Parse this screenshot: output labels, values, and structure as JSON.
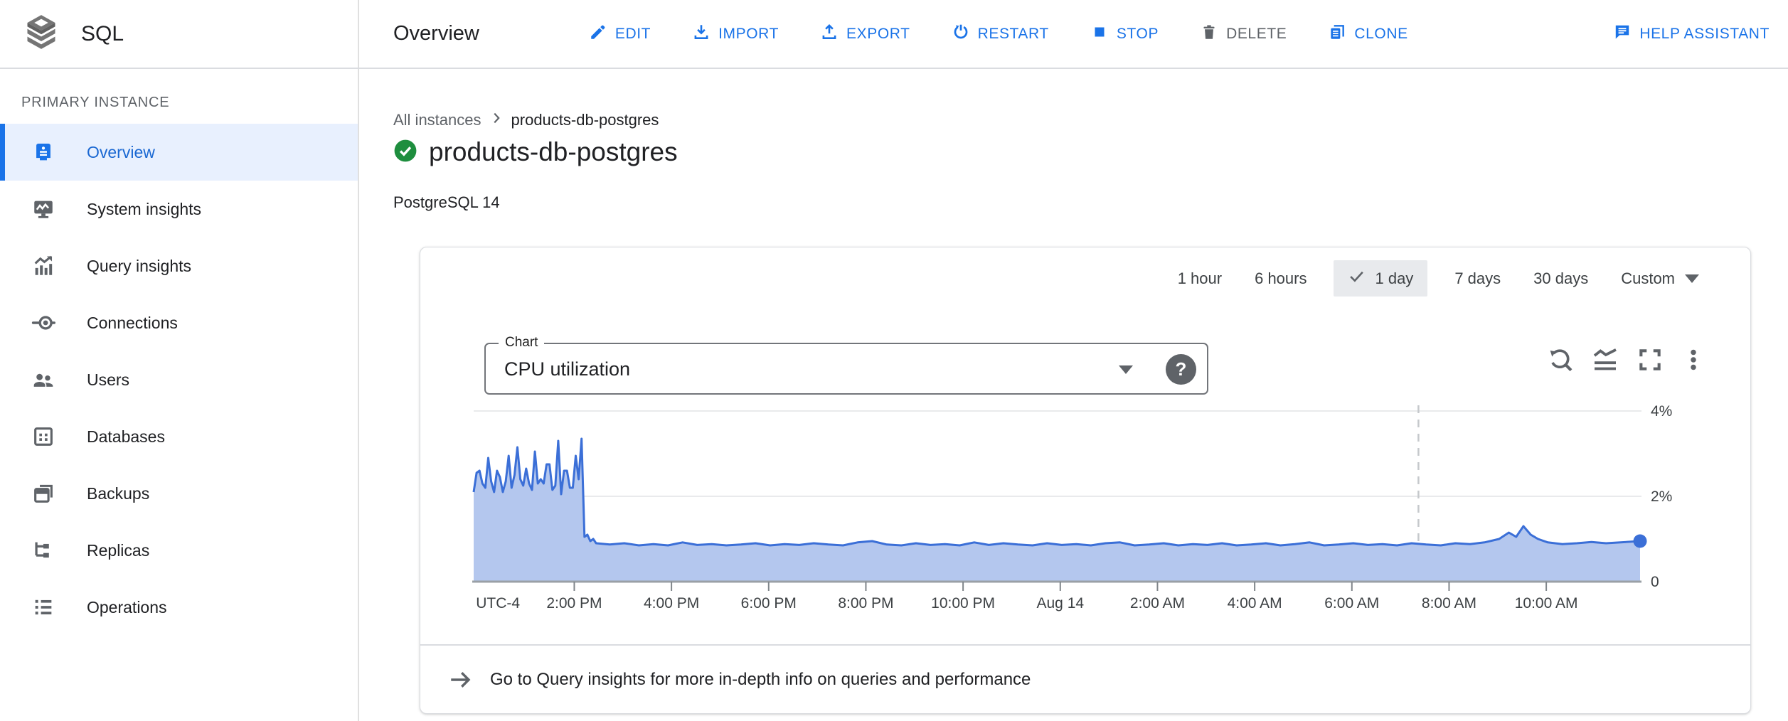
{
  "app": {
    "product_name": "SQL",
    "page_title": "Overview"
  },
  "toolbar": {
    "actions": [
      {
        "label": "EDIT",
        "icon": "edit-icon"
      },
      {
        "label": "IMPORT",
        "icon": "import-icon"
      },
      {
        "label": "EXPORT",
        "icon": "export-icon"
      },
      {
        "label": "RESTART",
        "icon": "restart-icon"
      },
      {
        "label": "STOP",
        "icon": "stop-icon"
      },
      {
        "label": "DELETE",
        "icon": "delete-icon"
      },
      {
        "label": "CLONE",
        "icon": "clone-icon"
      },
      {
        "label": "HELP ASSISTANT",
        "icon": "help-assistant-icon"
      }
    ]
  },
  "sidebar": {
    "section_label": "PRIMARY INSTANCE",
    "items": [
      {
        "label": "Overview",
        "icon": "overview-icon",
        "selected": true
      },
      {
        "label": "System insights",
        "icon": "system-insights-icon",
        "selected": false
      },
      {
        "label": "Query insights",
        "icon": "query-insights-icon",
        "selected": false
      },
      {
        "label": "Connections",
        "icon": "connections-icon",
        "selected": false
      },
      {
        "label": "Users",
        "icon": "users-icon",
        "selected": false
      },
      {
        "label": "Databases",
        "icon": "databases-icon",
        "selected": false
      },
      {
        "label": "Backups",
        "icon": "backups-icon",
        "selected": false
      },
      {
        "label": "Replicas",
        "icon": "replicas-icon",
        "selected": false
      },
      {
        "label": "Operations",
        "icon": "operations-icon",
        "selected": false
      }
    ]
  },
  "breadcrumb": {
    "parent": "All instances",
    "current": "products-db-postgres"
  },
  "instance": {
    "name": "products-db-postgres",
    "status": "healthy",
    "version": "PostgreSQL 14"
  },
  "time_range": {
    "options": [
      "1 hour",
      "6 hours",
      "1 day",
      "7 days",
      "30 days",
      "Custom"
    ],
    "selected": "1 day"
  },
  "chart_controls": {
    "label": "Chart",
    "selected_metric": "CPU utilization",
    "help": "?"
  },
  "footer_link": {
    "text": "Go to Query insights for more in-depth info on queries and performance"
  },
  "colors": {
    "accent_blue": "#1a73e8",
    "selected_text_blue": "#1967d2",
    "selected_bg": "#e8f0fe",
    "chart_line": "#3b6fd7",
    "chart_fill": "#b4c7ee",
    "grid_gray": "#e9eaec",
    "axis_gray": "#9aa0a6",
    "tick_gray": "#80868b",
    "label_gray": "#3c4043",
    "cursor_dash_gray": "#c6c9cc",
    "status_green": "#1e8e3e",
    "chip_bg": "#e8eaed"
  },
  "chart_data": {
    "type": "area",
    "title": "CPU utilization",
    "unit": "%",
    "x_unit": "hours since chart start (approx 11:56 AM, UTC-4)",
    "t_domain": [
      0,
      24
    ],
    "ylim": [
      0,
      4
    ],
    "grid": "horizontal",
    "legend_position": "none",
    "y_ticks": [
      {
        "v": 4,
        "label": "4%",
        "gridline": true
      },
      {
        "v": 2,
        "label": "2%",
        "gridline": true
      },
      {
        "v": 0,
        "label": "0",
        "gridline": false
      }
    ],
    "x_ticks": [
      {
        "t": 2.07,
        "label": "2:00 PM"
      },
      {
        "t": 4.07,
        "label": "4:00 PM"
      },
      {
        "t": 6.07,
        "label": "6:00 PM"
      },
      {
        "t": 8.07,
        "label": "8:00 PM"
      },
      {
        "t": 10.07,
        "label": "10:00 PM"
      },
      {
        "t": 12.07,
        "label": "Aug 14"
      },
      {
        "t": 14.07,
        "label": "2:00 AM"
      },
      {
        "t": 16.07,
        "label": "4:00 AM"
      },
      {
        "t": 18.07,
        "label": "6:00 AM"
      },
      {
        "t": 20.07,
        "label": "8:00 AM"
      },
      {
        "t": 22.07,
        "label": "10:00 AM"
      }
    ],
    "timezone_label": {
      "t": 0.5,
      "label": "UTC-4"
    },
    "cursor_t": 19.44,
    "end_dot": {
      "t": 24,
      "v": 0.95
    },
    "points": [
      [
        0,
        2.1
      ],
      [
        0.06,
        2.55
      ],
      [
        0.12,
        2.6
      ],
      [
        0.18,
        2.3
      ],
      [
        0.24,
        2.2
      ],
      [
        0.3,
        2.9
      ],
      [
        0.36,
        2.35
      ],
      [
        0.42,
        2.1
      ],
      [
        0.48,
        2.6
      ],
      [
        0.54,
        2.45
      ],
      [
        0.6,
        2.1
      ],
      [
        0.66,
        2.35
      ],
      [
        0.72,
        2.95
      ],
      [
        0.78,
        2.2
      ],
      [
        0.84,
        2.5
      ],
      [
        0.9,
        3.15
      ],
      [
        0.96,
        2.4
      ],
      [
        1.02,
        2.25
      ],
      [
        1.08,
        2.65
      ],
      [
        1.14,
        2.3
      ],
      [
        1.2,
        2.15
      ],
      [
        1.26,
        3.05
      ],
      [
        1.32,
        2.3
      ],
      [
        1.38,
        2.4
      ],
      [
        1.44,
        2.3
      ],
      [
        1.5,
        2.75
      ],
      [
        1.56,
        2.75
      ],
      [
        1.62,
        2.15
      ],
      [
        1.68,
        2.25
      ],
      [
        1.74,
        3.3
      ],
      [
        1.8,
        2.05
      ],
      [
        1.86,
        2.6
      ],
      [
        1.92,
        2.6
      ],
      [
        1.98,
        2.2
      ],
      [
        2.04,
        2.2
      ],
      [
        2.1,
        2.95
      ],
      [
        2.16,
        2.4
      ],
      [
        2.22,
        3.35
      ],
      [
        2.28,
        1.05
      ],
      [
        2.34,
        1.1
      ],
      [
        2.4,
        0.95
      ],
      [
        2.46,
        1.0
      ],
      [
        2.52,
        0.9
      ],
      [
        2.8,
        0.87
      ],
      [
        3.1,
        0.9
      ],
      [
        3.4,
        0.85
      ],
      [
        3.7,
        0.88
      ],
      [
        4,
        0.85
      ],
      [
        4.3,
        0.92
      ],
      [
        4.6,
        0.86
      ],
      [
        4.9,
        0.88
      ],
      [
        5.2,
        0.85
      ],
      [
        5.5,
        0.87
      ],
      [
        5.8,
        0.9
      ],
      [
        6.1,
        0.85
      ],
      [
        6.4,
        0.88
      ],
      [
        6.7,
        0.86
      ],
      [
        7,
        0.9
      ],
      [
        7.3,
        0.87
      ],
      [
        7.6,
        0.85
      ],
      [
        7.9,
        0.92
      ],
      [
        8.2,
        0.95
      ],
      [
        8.5,
        0.87
      ],
      [
        8.8,
        0.85
      ],
      [
        9.1,
        0.9
      ],
      [
        9.4,
        0.86
      ],
      [
        9.7,
        0.88
      ],
      [
        10,
        0.85
      ],
      [
        10.3,
        0.92
      ],
      [
        10.6,
        0.86
      ],
      [
        10.9,
        0.9
      ],
      [
        11.2,
        0.87
      ],
      [
        11.5,
        0.85
      ],
      [
        11.8,
        0.9
      ],
      [
        12.1,
        0.86
      ],
      [
        12.4,
        0.88
      ],
      [
        12.7,
        0.85
      ],
      [
        13,
        0.9
      ],
      [
        13.3,
        0.92
      ],
      [
        13.6,
        0.85
      ],
      [
        13.9,
        0.87
      ],
      [
        14.2,
        0.9
      ],
      [
        14.5,
        0.85
      ],
      [
        14.8,
        0.88
      ],
      [
        15.1,
        0.86
      ],
      [
        15.4,
        0.9
      ],
      [
        15.7,
        0.85
      ],
      [
        16,
        0.87
      ],
      [
        16.3,
        0.9
      ],
      [
        16.6,
        0.85
      ],
      [
        16.9,
        0.88
      ],
      [
        17.2,
        0.92
      ],
      [
        17.5,
        0.85
      ],
      [
        17.8,
        0.87
      ],
      [
        18.1,
        0.9
      ],
      [
        18.4,
        0.86
      ],
      [
        18.7,
        0.88
      ],
      [
        19,
        0.85
      ],
      [
        19.3,
        0.9
      ],
      [
        19.6,
        0.87
      ],
      [
        19.9,
        0.85
      ],
      [
        20.2,
        0.9
      ],
      [
        20.5,
        0.88
      ],
      [
        20.8,
        0.92
      ],
      [
        21.1,
        1.0
      ],
      [
        21.3,
        1.15
      ],
      [
        21.45,
        1.05
      ],
      [
        21.6,
        1.3
      ],
      [
        21.75,
        1.1
      ],
      [
        21.9,
        1.0
      ],
      [
        22.1,
        0.92
      ],
      [
        22.4,
        0.88
      ],
      [
        22.7,
        0.9
      ],
      [
        23,
        0.93
      ],
      [
        23.3,
        0.9
      ],
      [
        23.6,
        0.92
      ],
      [
        23.85,
        0.94
      ],
      [
        24,
        0.95
      ]
    ]
  }
}
